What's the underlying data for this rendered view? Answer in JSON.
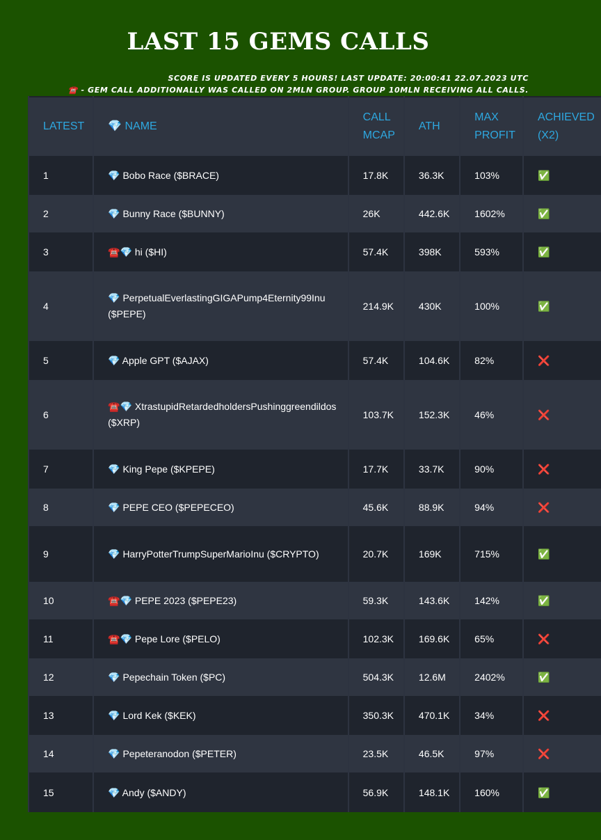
{
  "page": {
    "title": "LAST 15 GEMS CALLS",
    "update_note": "SCORE IS UPDATED EVERY 5 HOURS! LAST UPDATE: 20:00:41 22.07.2023 UTC",
    "group_note": "☎️ - GEM CALL ADDITIONALLY WAS CALLED ON 2MLN GROUP. GROUP 10MLN RECEIVING ALL CALLS."
  },
  "table": {
    "headers": [
      "LATEST",
      "💎 NAME",
      "CALL MCAP",
      "ATH",
      "MAX PROFIT",
      "ACHIEVED (x2)"
    ],
    "rows": [
      {
        "n": "1",
        "name": "💎 Bobo Race ($BRACE)",
        "mcap": "17.8K",
        "ath": "36.3K",
        "profit": "103%",
        "achieved": "✅",
        "ok": true
      },
      {
        "n": "2",
        "name": "💎 Bunny Race ($BUNNY)",
        "mcap": "26K",
        "ath": "442.6K",
        "profit": "1602%",
        "achieved": "✅",
        "ok": true
      },
      {
        "n": "3",
        "name": "☎️💎 hi ($HI)",
        "mcap": "57.4K",
        "ath": "398K",
        "profit": "593%",
        "achieved": "✅",
        "ok": true
      },
      {
        "n": "4",
        "name": "💎 PerpetualEverlastingGIGAPump4Eternity99Inu ($PEPE)",
        "mcap": "214.9K",
        "ath": "430K",
        "profit": "100%",
        "achieved": "✅",
        "ok": true
      },
      {
        "n": "5",
        "name": "💎 Apple GPT ($AJAX)",
        "mcap": "57.4K",
        "ath": "104.6K",
        "profit": "82%",
        "achieved": "❌",
        "ok": false
      },
      {
        "n": "6",
        "name": "☎️💎 XtrastupidRetardedholdersPushinggreendildos ($XRP)",
        "mcap": "103.7K",
        "ath": "152.3K",
        "profit": "46%",
        "achieved": "❌",
        "ok": false
      },
      {
        "n": "7",
        "name": "💎 King Pepe ($KPEPE)",
        "mcap": "17.7K",
        "ath": "33.7K",
        "profit": "90%",
        "achieved": "❌",
        "ok": false
      },
      {
        "n": "8",
        "name": "💎 PEPE CEO ($PEPECEO)",
        "mcap": "45.6K",
        "ath": "88.9K",
        "profit": "94%",
        "achieved": "❌",
        "ok": false
      },
      {
        "n": "9",
        "name": "💎 HarryPotterTrumpSuperMarioInu ($CRYPTO)",
        "mcap": "20.7K",
        "ath": "169K",
        "profit": "715%",
        "achieved": "✅",
        "ok": true
      },
      {
        "n": "10",
        "name": "☎️💎 PEPE 2023 ($PEPE23)",
        "mcap": "59.3K",
        "ath": "143.6K",
        "profit": "142%",
        "achieved": "✅",
        "ok": true
      },
      {
        "n": "11",
        "name": "☎️💎 Pepe Lore ($PELO)",
        "mcap": "102.3K",
        "ath": "169.6K",
        "profit": "65%",
        "achieved": "❌",
        "ok": false
      },
      {
        "n": "12",
        "name": "💎 Pepechain Token ($PC)",
        "mcap": "504.3K",
        "ath": "12.6M",
        "profit": "2402%",
        "achieved": "✅",
        "ok": true
      },
      {
        "n": "13",
        "name": "💎 Lord Kek ($KEK)",
        "mcap": "350.3K",
        "ath": "470.1K",
        "profit": "34%",
        "achieved": "❌",
        "ok": false
      },
      {
        "n": "14",
        "name": "💎 Pepeteranodon ($PETER)",
        "mcap": "23.5K",
        "ath": "46.5K",
        "profit": "97%",
        "achieved": "❌",
        "ok": false
      },
      {
        "n": "15",
        "name": "💎 Andy ($ANDY)",
        "mcap": "56.9K",
        "ath": "148.1K",
        "profit": "160%",
        "achieved": "✅",
        "ok": true
      }
    ]
  },
  "colors": {
    "background": "#1b5200",
    "header_text": "#2ea8e0",
    "row_dark": "#1f242d",
    "row_light": "#2f3541"
  }
}
